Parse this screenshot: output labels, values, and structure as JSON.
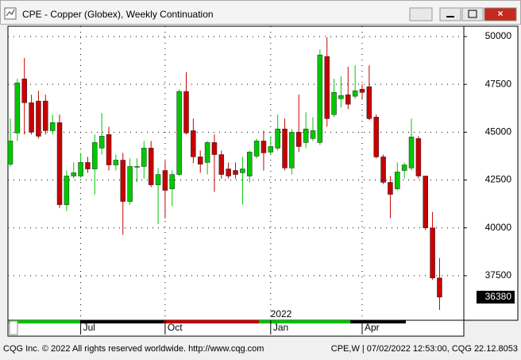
{
  "window_title": "CPE - Copper (Globex), Weekly Continuation",
  "footer_left": "CQG Inc. © 2022 All rights reserved worldwide. http://www.cqg.com",
  "footer_right": "CPE,W | 07/02/2022 12:53:00, CQG 22.12.8053",
  "chart_data": {
    "type": "candlestick",
    "year_label": "2022",
    "categories": [
      null,
      null,
      null,
      null,
      null,
      null,
      null,
      null,
      null,
      null,
      "Jul",
      null,
      null,
      null,
      null,
      null,
      null,
      null,
      null,
      null,
      null,
      null,
      "Oct",
      null,
      null,
      null,
      null,
      null,
      null,
      null,
      null,
      null,
      null,
      null,
      null,
      null,
      null,
      "Jan",
      null,
      null,
      null,
      null,
      null,
      null,
      null,
      null,
      null,
      null,
      null,
      null,
      "Apr",
      null,
      null,
      null,
      null,
      null,
      null,
      null,
      null,
      null,
      null,
      null
    ],
    "open": [
      43330,
      44960,
      47790,
      46540,
      46630,
      46630,
      45080,
      45500,
      41210,
      42710,
      42710,
      43420,
      43080,
      44170,
      44880,
      43290,
      43540,
      41380,
      43170,
      43210,
      44170,
      42250,
      43000,
      42040,
      42790,
      47130,
      45080,
      43710,
      43420,
      44460,
      43830,
      43080,
      43000,
      42880,
      42710,
      43750,
      44540,
      43960,
      44170,
      45170,
      43130,
      45000,
      44460,
      44670,
      44460,
      48960,
      45920,
      46750,
      46960,
      46880,
      47250,
      47380,
      45790,
      43710,
      42380,
      42040,
      43000,
      43130,
      44670,
      42710,
      40000,
      37380
    ],
    "high": [
      45710,
      47790,
      48880,
      46960,
      47170,
      46960,
      45920,
      45920,
      43000,
      43420,
      43920,
      43710,
      44880,
      46000,
      45290,
      43830,
      43920,
      43630,
      43630,
      44540,
      44540,
      43130,
      43500,
      43000,
      47250,
      48130,
      45710,
      44040,
      44540,
      44880,
      44040,
      43420,
      43420,
      43710,
      44040,
      44670,
      45080,
      44790,
      45920,
      45710,
      45170,
      46960,
      46040,
      45790,
      49330,
      49960,
      47790,
      47920,
      48420,
      48500,
      47500,
      48500,
      45920,
      43830,
      42710,
      43420,
      43420,
      45710,
      44790,
      42710,
      40830,
      38420
    ],
    "low": [
      43210,
      44540,
      44880,
      44880,
      44670,
      44880,
      44880,
      41040,
      40880,
      42580,
      42630,
      42880,
      41750,
      43830,
      43000,
      43000,
      39630,
      41210,
      42380,
      42580,
      42130,
      40210,
      40500,
      41130,
      42710,
      44880,
      43380,
      42880,
      42790,
      41880,
      42580,
      42580,
      42580,
      41210,
      42380,
      43630,
      43000,
      43830,
      44040,
      43000,
      42790,
      43960,
      44170,
      44540,
      44330,
      45290,
      45790,
      46290,
      46210,
      46750,
      46750,
      45630,
      43630,
      42290,
      40500,
      41960,
      42580,
      43000,
      42580,
      39880,
      37290,
      35710
    ],
    "close": [
      44540,
      47580,
      46540,
      45000,
      44790,
      45080,
      45500,
      41210,
      42710,
      42880,
      43420,
      43080,
      44460,
      44790,
      43290,
      43540,
      41380,
      43210,
      43210,
      44170,
      42250,
      42790,
      41960,
      42790,
      47130,
      44960,
      43710,
      43330,
      44460,
      43830,
      42790,
      42710,
      42790,
      43080,
      43960,
      44540,
      43920,
      44250,
      45170,
      43130,
      45000,
      44250,
      45170,
      45080,
      49040,
      45710,
      47080,
      46920,
      46460,
      47170,
      47080,
      45710,
      43710,
      42380,
      41750,
      42920,
      43290,
      44750,
      42710,
      40000,
      37380,
      36380
    ],
    "up_color": "#00c800",
    "down_color": "#c80000",
    "ylim": [
      35170,
      50540
    ],
    "yticks": [
      37500,
      40000,
      42500,
      45000,
      47500,
      50000
    ],
    "grid": true
  }
}
